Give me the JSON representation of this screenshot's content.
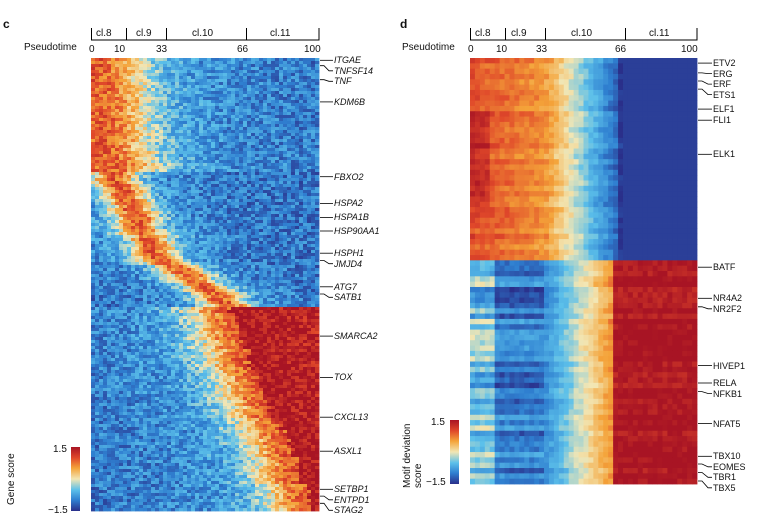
{
  "panels": [
    {
      "letter": "c",
      "pseudotime_label": "Pseudotime",
      "ticks": [
        "0",
        "10",
        "33",
        "66",
        "100"
      ],
      "clusters": [
        "cl.8",
        "cl.9",
        "cl.10",
        "cl.11"
      ],
      "legend_title": "Gene score",
      "legend_max": "1.5",
      "legend_min": "−1.5",
      "genes": [
        "ITGAE",
        "TNFSF14",
        "TNF",
        "KDM6B",
        "FBXO2",
        "HSPA2",
        "HSPA1B",
        "HSP90AA1",
        "HSPH1",
        "JMJD4",
        "ATG7",
        "SATB1",
        "SMARCA2",
        "TOX",
        "CXCL13",
        "ASXL1",
        "SETBP1",
        "ENTPD1",
        "STAG2"
      ]
    },
    {
      "letter": "d",
      "pseudotime_label": "Pseudotime",
      "ticks": [
        "0",
        "10",
        "33",
        "66",
        "100"
      ],
      "clusters": [
        "cl.8",
        "cl.9",
        "cl.10",
        "cl.11"
      ],
      "legend_title": "Motif deviation score",
      "legend_max": "1.5",
      "legend_min": "−1.5",
      "motifs": [
        "ETV2",
        "ERG",
        "ERF",
        "ETS1",
        "ELF1",
        "FLI1",
        "ELK1",
        "BATF",
        "NR4A2",
        "NR2F2",
        "HIVEP1",
        "RELA",
        "NFKB1",
        "NFAT5",
        "TBX10",
        "EOMES",
        "TBR1",
        "TBX5"
      ]
    }
  ],
  "chart_data": [
    {
      "type": "heatmap",
      "x_axis": "Pseudotime",
      "x_ticks": [
        0,
        10,
        33,
        66,
        100
      ],
      "xlim": [
        0,
        100
      ],
      "cluster_ranges": [
        {
          "name": "cl.8",
          "x": [
            0,
            10
          ]
        },
        {
          "name": "cl.9",
          "x": [
            10,
            33
          ]
        },
        {
          "name": "cl.10",
          "x": [
            33,
            66
          ]
        },
        {
          "name": "cl.11",
          "x": [
            66,
            100
          ]
        }
      ],
      "color_scale": {
        "label": "Gene score",
        "min": -1.5,
        "max": 1.5,
        "colors": [
          "#2a2f8a",
          "#2f7fd0",
          "#5cc0ea",
          "#f2e6b4",
          "#f4a339",
          "#e0482a",
          "#a81424"
        ]
      },
      "row_labels": [
        "ITGAE",
        "TNFSF14",
        "TNF",
        "KDM6B",
        "FBXO2",
        "HSPA2",
        "HSPA1B",
        "HSP90AA1",
        "HSPH1",
        "JMJD4",
        "ATG7",
        "SATB1",
        "SMARCA2",
        "TOX",
        "CXCL13",
        "ASXL1",
        "SETBP1",
        "ENTPD1",
        "STAG2"
      ],
      "row_label_positions": [
        0.005,
        0.017,
        0.048,
        0.097,
        0.262,
        0.321,
        0.352,
        0.382,
        0.431,
        0.447,
        0.505,
        0.521,
        0.614,
        0.705,
        0.793,
        0.868,
        0.952,
        0.967,
        0.983
      ],
      "peak_pseudotime": [
        2,
        2,
        3,
        4,
        12,
        16,
        20,
        26,
        38,
        50,
        62,
        64,
        70,
        78,
        86,
        92,
        96,
        97,
        98
      ]
    },
    {
      "type": "heatmap",
      "x_axis": "Pseudotime",
      "x_ticks": [
        0,
        10,
        33,
        66,
        100
      ],
      "xlim": [
        0,
        100
      ],
      "cluster_ranges": [
        {
          "name": "cl.8",
          "x": [
            0,
            10
          ]
        },
        {
          "name": "cl.9",
          "x": [
            10,
            33
          ]
        },
        {
          "name": "cl.10",
          "x": [
            33,
            66
          ]
        },
        {
          "name": "cl.11",
          "x": [
            66,
            100
          ]
        }
      ],
      "color_scale": {
        "label": "Motif deviation score",
        "min": -1.5,
        "max": 1.5,
        "colors": [
          "#2a2f8a",
          "#2f7fd0",
          "#5cc0ea",
          "#f2e6b4",
          "#f4a339",
          "#e0482a",
          "#a81424"
        ]
      },
      "row_labels": [
        "ETV2",
        "ERG",
        "ERF",
        "ETS1",
        "ELF1",
        "FLI1",
        "ELK1",
        "BATF",
        "NR4A2",
        "NR2F2",
        "HIVEP1",
        "RELA",
        "NFKB1",
        "NFAT5",
        "TBX10",
        "EOMES",
        "TBR1",
        "TBX5"
      ],
      "row_label_positions": [
        0.012,
        0.035,
        0.054,
        0.073,
        0.12,
        0.146,
        0.226,
        0.491,
        0.564,
        0.584,
        0.722,
        0.763,
        0.783,
        0.858,
        0.935,
        0.953,
        0.973,
        0.993
      ],
      "row_groups": [
        {
          "pattern": "high early, low in cl.11",
          "rows_fraction": [
            0,
            0.47
          ]
        },
        {
          "pattern": "low early, high in cl.11",
          "rows_fraction": [
            0.47,
            1
          ]
        }
      ]
    }
  ]
}
